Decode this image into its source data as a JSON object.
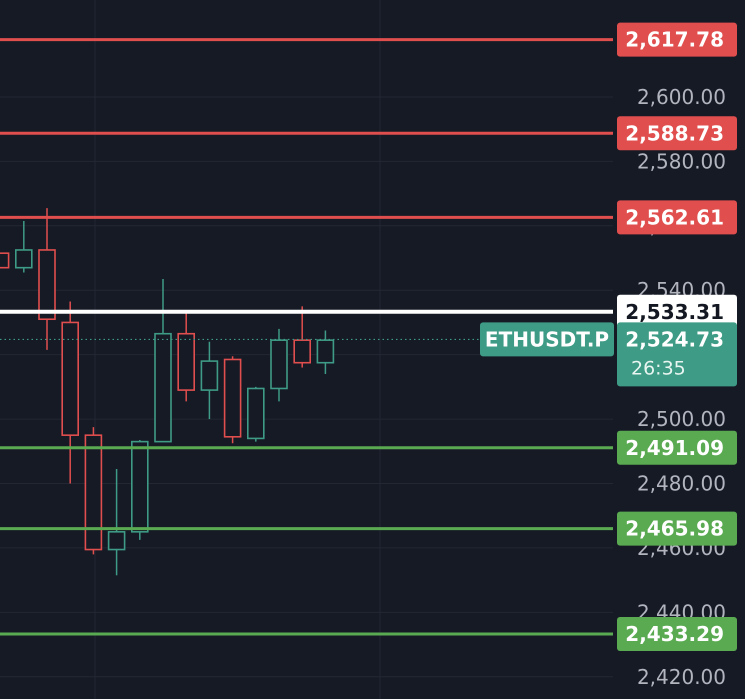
{
  "chart_data": {
    "type": "candlestick",
    "symbol": "ETHUSDT.P",
    "ylim": [
      2413.1,
      2630.1
    ],
    "y_ticks": [
      "2,600.00",
      "2,580.00",
      "2,560.00",
      "2,540.00",
      "2,520.00",
      "2,500.00",
      "2,480.00",
      "2,460.00",
      "2,440.00",
      "2,420.00"
    ],
    "y_tick_values": [
      2600,
      2580,
      2560,
      2540,
      2520,
      2500,
      2480,
      2460,
      2440,
      2420
    ],
    "grid": true,
    "candles": [
      {
        "open": 2551.5,
        "high": 2551.5,
        "low": 2547.0,
        "close": 2547.0
      },
      {
        "open": 2547.0,
        "high": 2561.5,
        "low": 2545.5,
        "close": 2552.5
      },
      {
        "open": 2552.5,
        "high": 2565.5,
        "low": 2521.5,
        "close": 2531.0
      },
      {
        "open": 2530.0,
        "high": 2536.5,
        "low": 2480.0,
        "close": 2495.0
      },
      {
        "open": 2495.0,
        "high": 2497.5,
        "low": 2458.0,
        "close": 2459.5
      },
      {
        "open": 2459.5,
        "high": 2484.5,
        "low": 2451.5,
        "close": 2465.0
      },
      {
        "open": 2465.0,
        "high": 2493.5,
        "low": 2462.5,
        "close": 2493.0
      },
      {
        "open": 2493.0,
        "high": 2543.5,
        "low": 2493.0,
        "close": 2526.5
      },
      {
        "open": 2526.5,
        "high": 2533.5,
        "low": 2505.5,
        "close": 2509.0
      },
      {
        "open": 2509.0,
        "high": 2524.0,
        "low": 2500.0,
        "close": 2518.0
      },
      {
        "open": 2518.5,
        "high": 2519.5,
        "low": 2492.5,
        "close": 2494.5
      },
      {
        "open": 2494.0,
        "high": 2510.0,
        "low": 2493.0,
        "close": 2509.5
      },
      {
        "open": 2509.5,
        "high": 2528.0,
        "low": 2505.5,
        "close": 2524.5
      },
      {
        "open": 2524.5,
        "high": 2535.0,
        "low": 2516.0,
        "close": 2517.5
      },
      {
        "open": 2517.5,
        "high": 2527.5,
        "low": 2514.0,
        "close": 2524.5
      }
    ],
    "levels": [
      {
        "value": 2617.78,
        "label": "2,617.78",
        "color": "#e04e4e"
      },
      {
        "value": 2588.73,
        "label": "2,588.73",
        "color": "#e04e4e"
      },
      {
        "value": 2562.61,
        "label": "2,562.61",
        "color": "#e04e4e"
      },
      {
        "value": 2533.31,
        "label": "2,533.31",
        "color": "#ffffff"
      },
      {
        "value": 2491.09,
        "label": "2,491.09",
        "color": "#5aaa52"
      },
      {
        "value": 2465.98,
        "label": "2,465.98",
        "color": "#5aaa52"
      },
      {
        "value": 2433.29,
        "label": "2,433.29",
        "color": "#5aaa52"
      }
    ],
    "last_price": {
      "value": 2524.73,
      "label": "2,524.73",
      "countdown": "26:35",
      "color": "#3e9b85"
    }
  },
  "colors": {
    "background": "#161a25",
    "grid": "#232733",
    "up": "#3e9b85",
    "down": "#e04e4e",
    "axis_text": "#b2b5be",
    "red_tag": "#e04e4e",
    "green_tag": "#5aaa52",
    "white_tag": "#ffffff"
  }
}
